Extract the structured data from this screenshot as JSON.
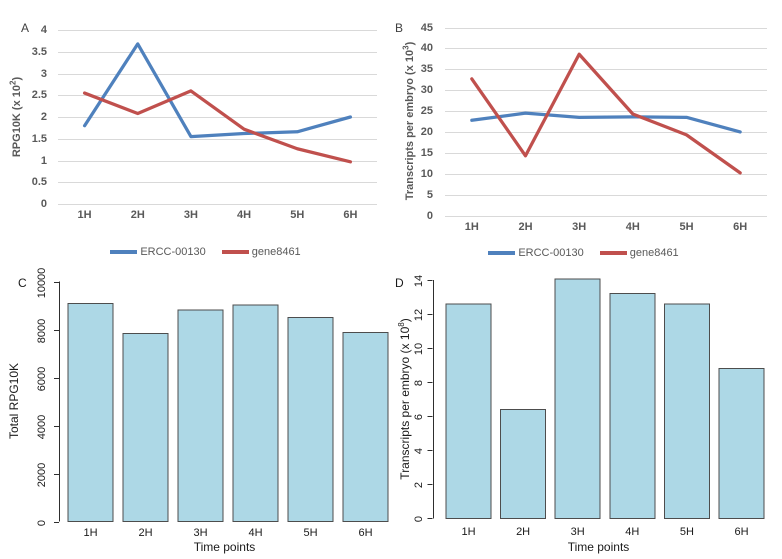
{
  "figure": {
    "background": "#ffffff",
    "panel_letters": [
      "A",
      "B",
      "C",
      "D"
    ]
  },
  "colors": {
    "series_blue": "#4F81BD",
    "series_red": "#C0504D",
    "gridline": "#D9D9D9",
    "excel_text": "#595959",
    "base_text": "#1a1a1a",
    "bar_fill": "#ADD8E6",
    "bar_border": "#4D4D4D"
  },
  "chart_data": [
    {
      "panel": "A",
      "type": "line",
      "categories": [
        "1H",
        "2H",
        "3H",
        "4H",
        "5H",
        "6H"
      ],
      "series": [
        {
          "name": "ERCC-00130",
          "color": "#4F81BD",
          "values": [
            1.8,
            3.68,
            1.55,
            1.62,
            1.66,
            2.0
          ]
        },
        {
          "name": "gene8461",
          "color": "#C0504D",
          "values": [
            2.55,
            2.08,
            2.6,
            1.72,
            1.27,
            0.97
          ]
        }
      ],
      "ylabel": "RPG10K (x 10²)",
      "ylabel_rich": [
        {
          "t": "RPG10K (x 10"
        },
        {
          "t": "2",
          "sup": true
        },
        {
          "t": ")"
        }
      ],
      "xlabel": "",
      "ylim": [
        0,
        4
      ],
      "ystep": 0.5,
      "yticklabels": [
        "0",
        "0.5",
        "1",
        "1.5",
        "2",
        "2.5",
        "3",
        "3.5",
        "4"
      ],
      "grid": true,
      "legend_position": "bottom",
      "legend_labels": [
        "ERCC-00130",
        "gene8461"
      ]
    },
    {
      "panel": "B",
      "type": "line",
      "categories": [
        "1H",
        "2H",
        "3H",
        "4H",
        "5H",
        "6H"
      ],
      "series": [
        {
          "name": "ERCC-00130",
          "color": "#4F81BD",
          "values": [
            22.8,
            24.5,
            23.5,
            23.6,
            23.5,
            20.0
          ]
        },
        {
          "name": "gene8461",
          "color": "#C0504D",
          "values": [
            32.7,
            14.3,
            38.6,
            24.3,
            19.3,
            10.2
          ]
        }
      ],
      "ylabel": "Transcripts per embryo (x 10³)",
      "ylabel_rich": [
        {
          "t": "Transcripts per embryo (x 10"
        },
        {
          "t": "3",
          "sup": true
        },
        {
          "t": ")"
        }
      ],
      "xlabel": "",
      "ylim": [
        0,
        45
      ],
      "ystep": 5,
      "yticklabels": [
        "0",
        "5",
        "10",
        "15",
        "20",
        "25",
        "30",
        "35",
        "40",
        "45"
      ],
      "grid": true,
      "legend_position": "bottom",
      "legend_labels": [
        "ERCC-00130",
        "gene8461"
      ]
    },
    {
      "panel": "C",
      "type": "bar",
      "categories": [
        "1H",
        "2H",
        "3H",
        "4H",
        "5H",
        "6H"
      ],
      "values": [
        9100,
        7850,
        8820,
        9030,
        8500,
        7890
      ],
      "bar_fill": "#ADD8E6",
      "bar_border": "#4D4D4D",
      "ylabel": "Total RPG10K",
      "xlabel": "Time points",
      "ylim": [
        0,
        10000
      ],
      "ystep": 2000,
      "yticklabels": [
        "0",
        "2000",
        "4000",
        "6000",
        "8000",
        "10000"
      ],
      "grid": false
    },
    {
      "panel": "D",
      "type": "bar",
      "categories": [
        "1H",
        "2H",
        "3H",
        "4H",
        "5H",
        "6H"
      ],
      "values": [
        12.6,
        6.4,
        14.05,
        13.2,
        12.6,
        8.8
      ],
      "bar_fill": "#ADD8E6",
      "bar_border": "#4D4D4D",
      "ylabel": "Transcripts per embryo (x 10⁸)",
      "ylabel_rich": [
        {
          "t": "Transcripts per embryo (x 10"
        },
        {
          "t": "8",
          "sup": true
        },
        {
          "t": ")"
        }
      ],
      "xlabel": "Time points",
      "ylim": [
        0,
        14
      ],
      "ystep": 2,
      "yticklabels": [
        "0",
        "2",
        "4",
        "6",
        "8",
        "10",
        "12",
        "14"
      ],
      "grid": false
    }
  ]
}
